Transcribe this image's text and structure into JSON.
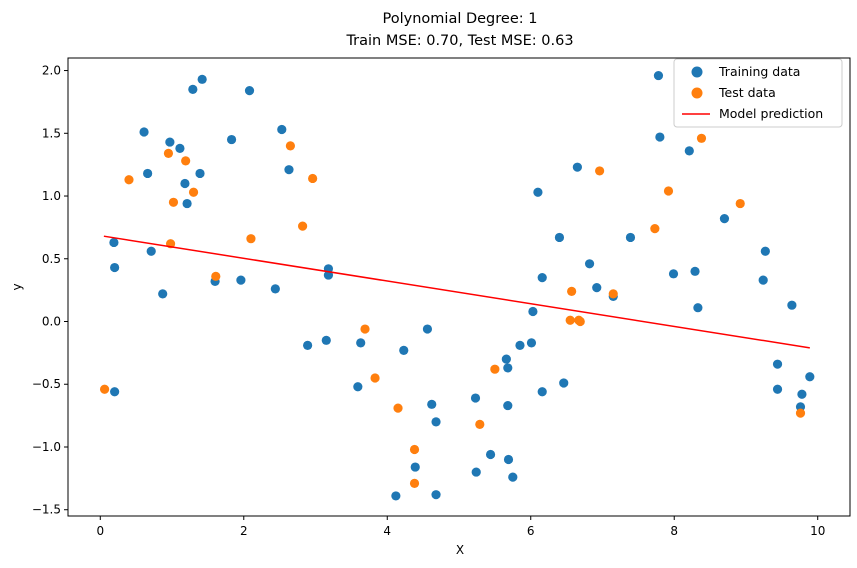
{
  "chart_data": {
    "type": "scatter",
    "title": "Polynomial Degree: 1",
    "subtitle": "Train MSE: 0.70, Test MSE: 0.63",
    "xlabel": "X",
    "ylabel": "y",
    "xlim": [
      -0.45,
      10.45
    ],
    "ylim": [
      -1.55,
      2.1
    ],
    "xticks": [
      0,
      2,
      4,
      6,
      8,
      10
    ],
    "yticks": [
      -1.5,
      -1.0,
      -0.5,
      0.0,
      0.5,
      1.0,
      1.5,
      2.0
    ],
    "xtick_labels": [
      "0",
      "2",
      "4",
      "6",
      "8",
      "10"
    ],
    "ytick_labels": [
      "−1.5",
      "−1.0",
      "−0.5",
      "0.0",
      "0.5",
      "1.0",
      "1.5",
      "2.0"
    ],
    "grid": false,
    "legend_position": "top-right",
    "series": [
      {
        "name": "Training data",
        "kind": "scatter",
        "color": "#1f77b4",
        "points": [
          [
            0.19,
            0.63
          ],
          [
            0.2,
            0.43
          ],
          [
            0.2,
            -0.56
          ],
          [
            0.61,
            1.51
          ],
          [
            0.66,
            1.18
          ],
          [
            0.71,
            0.56
          ],
          [
            0.87,
            0.22
          ],
          [
            0.97,
            1.43
          ],
          [
            1.11,
            1.38
          ],
          [
            1.18,
            1.1
          ],
          [
            1.21,
            0.94
          ],
          [
            1.29,
            1.85
          ],
          [
            1.39,
            1.18
          ],
          [
            1.42,
            1.93
          ],
          [
            1.6,
            0.32
          ],
          [
            1.83,
            1.45
          ],
          [
            1.96,
            0.33
          ],
          [
            2.08,
            1.84
          ],
          [
            2.44,
            0.26
          ],
          [
            2.53,
            1.53
          ],
          [
            2.63,
            1.21
          ],
          [
            2.89,
            -0.19
          ],
          [
            3.15,
            -0.15
          ],
          [
            3.18,
            0.42
          ],
          [
            3.18,
            0.37
          ],
          [
            3.59,
            -0.52
          ],
          [
            3.63,
            -0.17
          ],
          [
            4.12,
            -1.39
          ],
          [
            4.23,
            -0.23
          ],
          [
            4.39,
            -1.16
          ],
          [
            4.56,
            -0.06
          ],
          [
            4.62,
            -0.66
          ],
          [
            4.68,
            -1.38
          ],
          [
            4.68,
            -0.8
          ],
          [
            5.23,
            -0.61
          ],
          [
            5.24,
            -1.2
          ],
          [
            5.44,
            -1.06
          ],
          [
            5.66,
            -0.3
          ],
          [
            5.68,
            -0.37
          ],
          [
            5.68,
            -0.67
          ],
          [
            5.69,
            -1.1
          ],
          [
            5.75,
            -1.24
          ],
          [
            5.85,
            -0.19
          ],
          [
            6.01,
            -0.17
          ],
          [
            6.03,
            0.08
          ],
          [
            6.1,
            1.03
          ],
          [
            6.16,
            0.35
          ],
          [
            6.16,
            -0.56
          ],
          [
            6.4,
            0.67
          ],
          [
            6.46,
            -0.49
          ],
          [
            6.65,
            1.23
          ],
          [
            6.82,
            0.46
          ],
          [
            6.92,
            0.27
          ],
          [
            7.15,
            0.2
          ],
          [
            7.39,
            0.67
          ],
          [
            7.78,
            1.96
          ],
          [
            7.8,
            1.47
          ],
          [
            7.99,
            0.38
          ],
          [
            8.21,
            1.36
          ],
          [
            8.29,
            0.4
          ],
          [
            8.33,
            0.11
          ],
          [
            8.7,
            0.82
          ],
          [
            9.24,
            0.33
          ],
          [
            9.27,
            0.56
          ],
          [
            9.44,
            -0.34
          ],
          [
            9.44,
            -0.54
          ],
          [
            9.64,
            0.13
          ],
          [
            9.76,
            -0.68
          ],
          [
            9.78,
            -0.58
          ],
          [
            9.89,
            -0.44
          ]
        ]
      },
      {
        "name": "Test data",
        "kind": "scatter",
        "color": "#ff7f0e",
        "points": [
          [
            0.06,
            -0.54
          ],
          [
            0.4,
            1.13
          ],
          [
            0.95,
            1.34
          ],
          [
            0.98,
            0.62
          ],
          [
            1.02,
            0.95
          ],
          [
            1.19,
            1.28
          ],
          [
            1.3,
            1.03
          ],
          [
            1.61,
            0.36
          ],
          [
            2.1,
            0.66
          ],
          [
            2.65,
            1.4
          ],
          [
            2.82,
            0.76
          ],
          [
            2.96,
            1.14
          ],
          [
            3.69,
            -0.06
          ],
          [
            3.83,
            -0.45
          ],
          [
            4.15,
            -0.69
          ],
          [
            4.38,
            -1.02
          ],
          [
            4.38,
            -1.29
          ],
          [
            5.29,
            -0.82
          ],
          [
            5.5,
            -0.38
          ],
          [
            6.55,
            0.01
          ],
          [
            6.57,
            0.24
          ],
          [
            6.67,
            0.01
          ],
          [
            6.69,
            0.0
          ],
          [
            6.96,
            1.2
          ],
          [
            7.15,
            0.22
          ],
          [
            7.73,
            0.74
          ],
          [
            7.92,
            1.04
          ],
          [
            8.38,
            1.46
          ],
          [
            8.92,
            0.94
          ],
          [
            9.76,
            -0.73
          ]
        ]
      },
      {
        "name": "Model prediction",
        "kind": "line",
        "color": "#ff0000",
        "points": [
          [
            0.05,
            0.68
          ],
          [
            9.89,
            -0.21
          ]
        ]
      }
    ]
  }
}
